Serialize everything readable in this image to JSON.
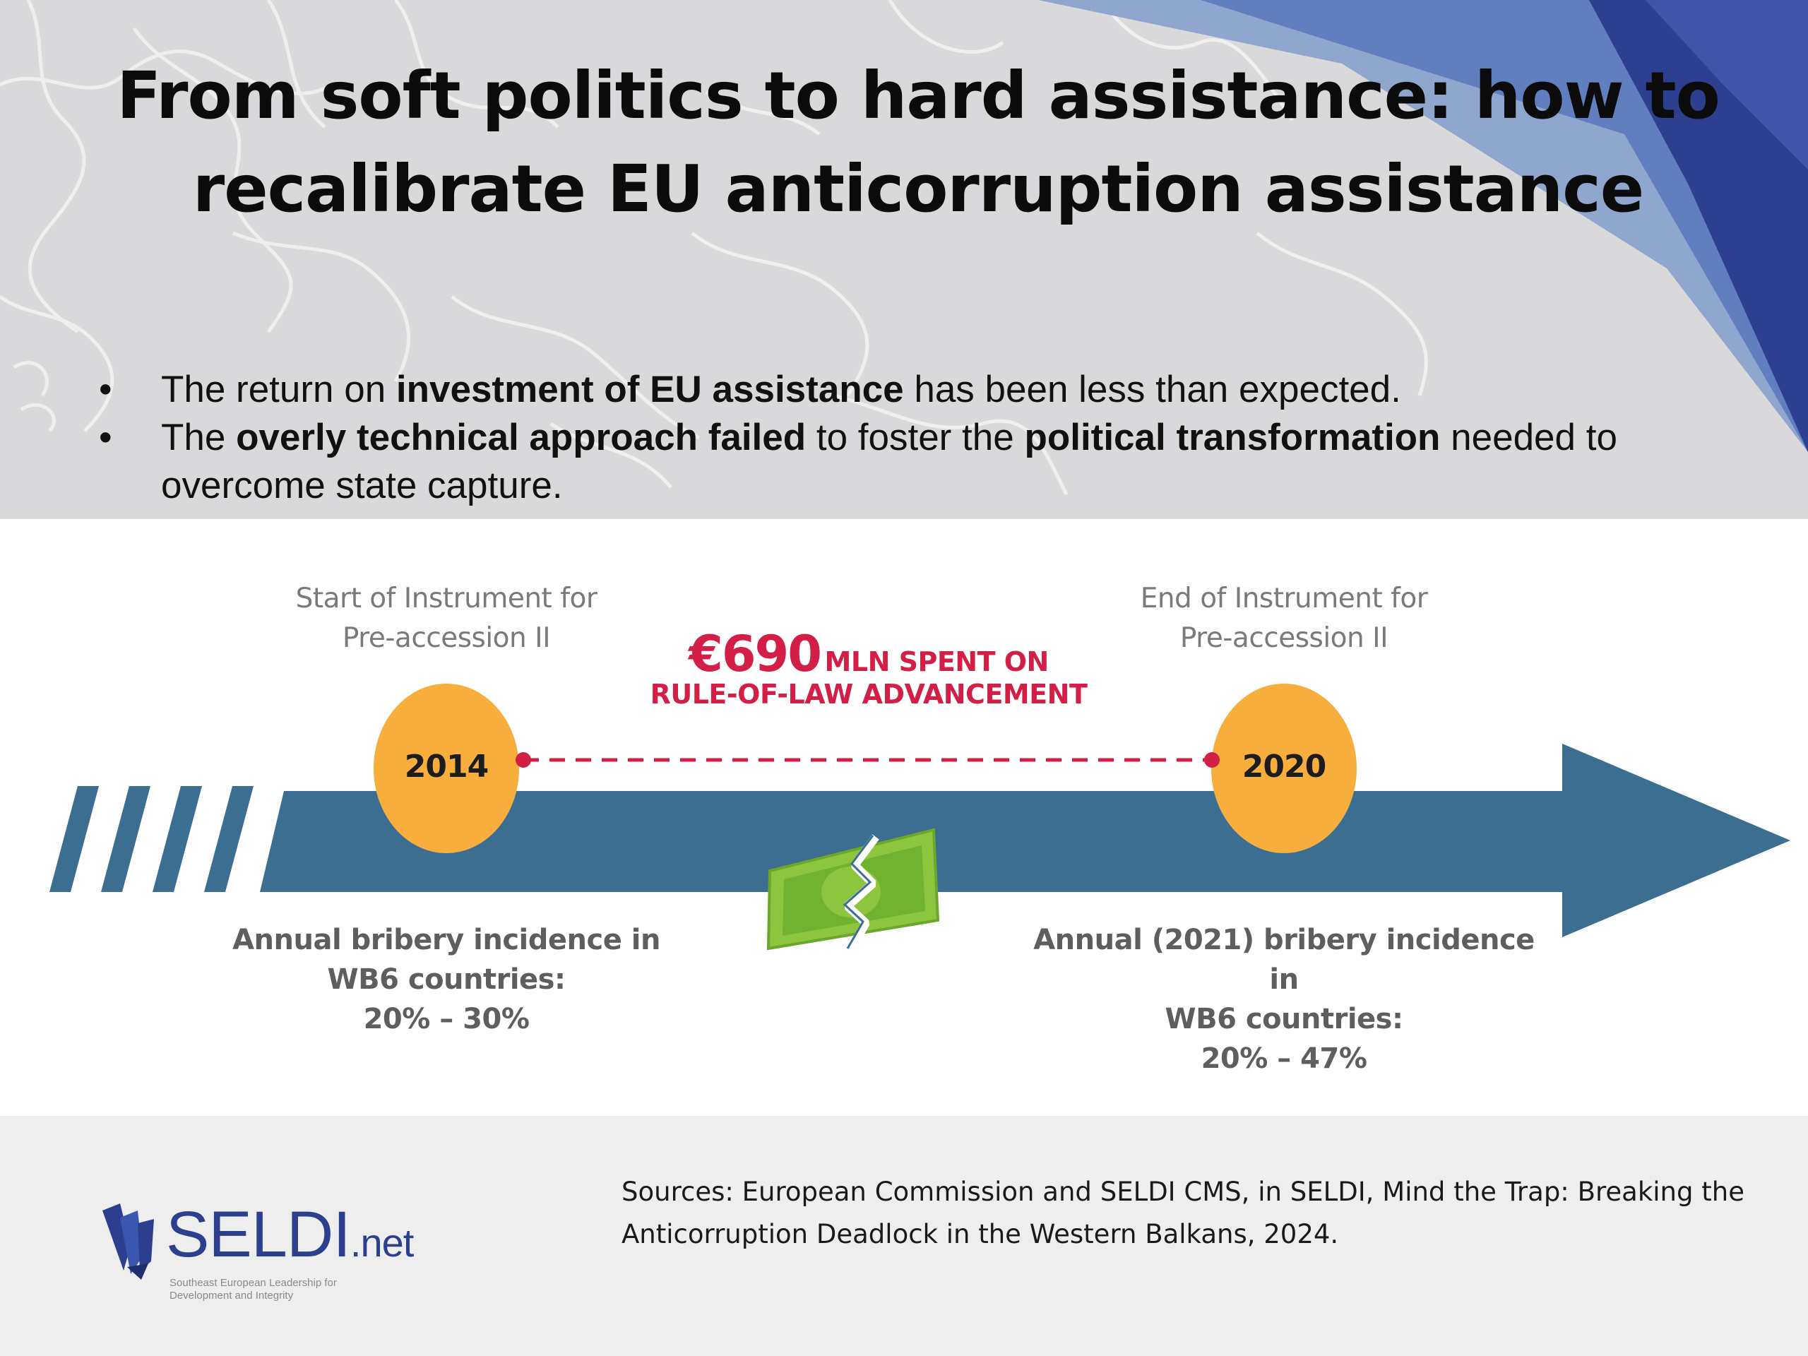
{
  "title": "From soft politics to hard assistance: how to recalibrate EU anticorruption assistance",
  "bullets": [
    {
      "dot": "•",
      "parts": [
        {
          "text": "The return on ",
          "bold": false
        },
        {
          "text": "investment of EU assistance",
          "bold": true
        },
        {
          "text": " has been less than expected.",
          "bold": false
        }
      ]
    },
    {
      "dot": "•",
      "parts": [
        {
          "text": "The ",
          "bold": false
        },
        {
          "text": "overly technical approach failed",
          "bold": true
        },
        {
          "text": " to foster the ",
          "bold": false
        },
        {
          "text": "political transformation",
          "bold": true
        },
        {
          "text": " needed to overcome state capture.",
          "bold": false
        }
      ]
    }
  ],
  "timeline": {
    "start_caption": "Start of Instrument for\nPre-accession II",
    "end_caption": "End of Instrument for\nPre-accession II",
    "start_year": "2014",
    "end_year": "2020",
    "highlight_amount": "€690",
    "highlight_rest": "MLN SPENT ON",
    "highlight_line2": "RULE-OF-LAW ADVANCEMENT",
    "start_stat": "Annual bribery incidence in\nWB6 countries:\n20% – 30%",
    "end_stat": "Annual (2021) bribery incidence in\nWB6 countries:\n20% – 47%",
    "icons": [
      "broken-banknote-icon"
    ],
    "colors": {
      "arrow": "#3c6e91",
      "year_circle": "#f8ae3c",
      "highlight": "#d31f46"
    }
  },
  "footer": {
    "logo_text": "SELDI",
    "logo_suffix": ".net",
    "logo_tagline": "Southeast European Leadership for\nDevelopment and Integrity",
    "sources": "Sources: European Commission and SELDI CMS, in SELDI, Mind the Trap: Breaking the Anticorruption Deadlock in the Western Balkans, 2024."
  }
}
